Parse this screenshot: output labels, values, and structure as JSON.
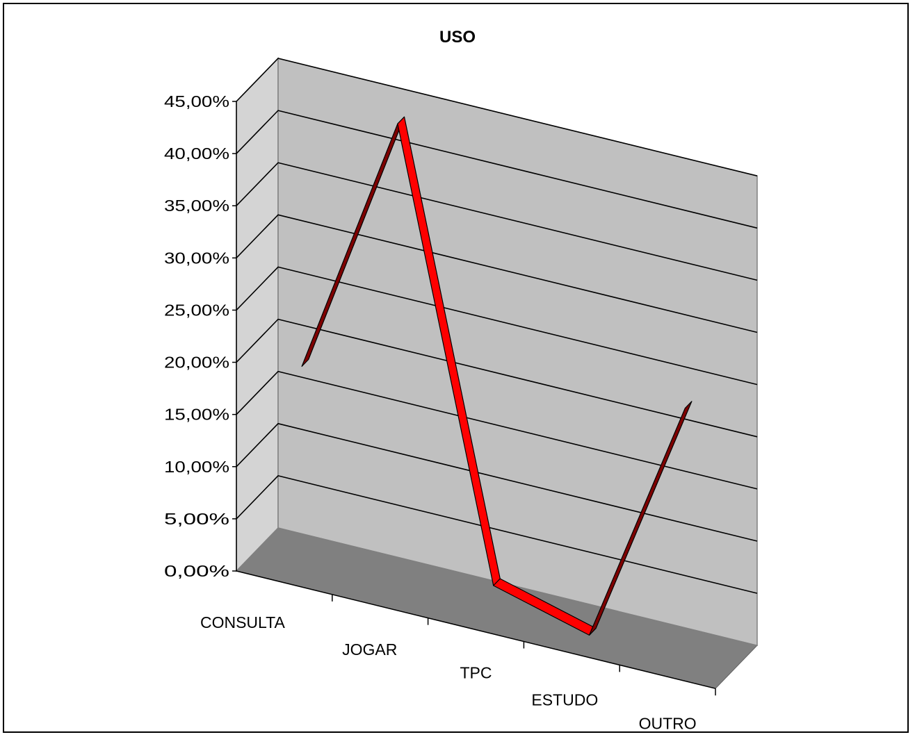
{
  "chart_data": {
    "type": "line",
    "title": "USO",
    "xlabel": "",
    "ylabel": "",
    "categories": [
      "CONSULTA",
      "JOGAR",
      "TPC",
      "ESTUDO",
      "OUTRO"
    ],
    "values": [
      0.19,
      0.445,
      0.025,
      0.0,
      0.24
    ],
    "ylim": [
      0,
      0.45
    ],
    "yticks": [
      "0,00%",
      "5,00%",
      "10,00%",
      "15,00%",
      "20,00%",
      "25,00%",
      "30,00%",
      "35,00%",
      "40,00%",
      "45,00%"
    ],
    "grid": true,
    "legend": "none",
    "view": "3d",
    "colors": {
      "line_face": "#ff0000",
      "line_side": "#7f0000",
      "back_wall": "#c0c0c0",
      "side_wall": "#d4d4d4",
      "floor": "#808080",
      "wall_edge": "#808080"
    }
  }
}
